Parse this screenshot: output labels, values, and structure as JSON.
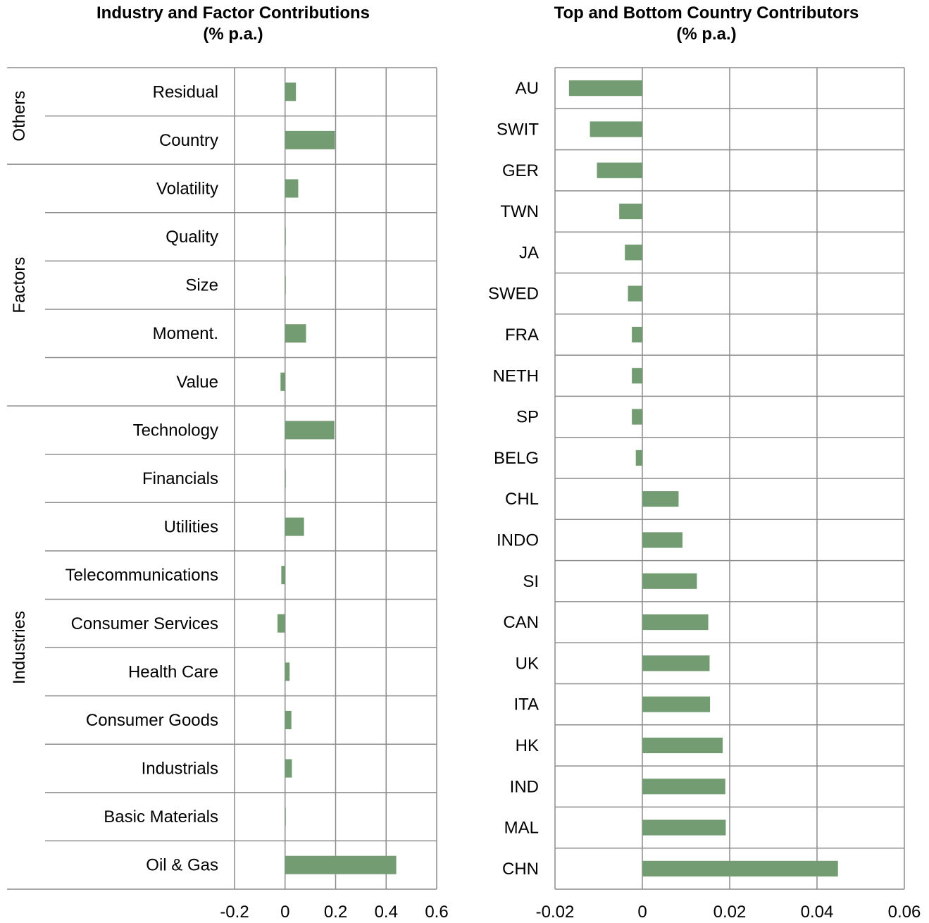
{
  "bar_color": "#749c73",
  "grid_color": "#8c8c8c",
  "chart_data": [
    {
      "type": "bar",
      "orientation": "horizontal",
      "title": "Industry and Factor Contributions",
      "subtitle": "(% p.a.)",
      "xlim": [
        -0.2,
        0.6
      ],
      "xticks": [
        -0.2,
        0,
        0.2,
        0.4,
        0.6
      ],
      "xtick_labels": [
        "-0.2",
        "0",
        "0.2",
        "0.4",
        "0.6"
      ],
      "grid": true,
      "groups": [
        {
          "label": "Others",
          "categories": [
            "Residual",
            "Country"
          ]
        },
        {
          "label": "Factors",
          "categories": [
            "Volatility",
            "Quality",
            "Size",
            "Moment.",
            "Value"
          ]
        },
        {
          "label": "Industries",
          "categories": [
            "Technology",
            "Financials",
            "Utilities",
            "Telecommunications",
            "Consumer Services",
            "Health Care",
            "Consumer Goods",
            "Industrials",
            "Basic Materials",
            "Oil & Gas"
          ]
        }
      ],
      "categories": [
        "Residual",
        "Country",
        "Volatility",
        "Quality",
        "Size",
        "Moment.",
        "Value",
        "Technology",
        "Financials",
        "Utilities",
        "Telecommunications",
        "Consumer Services",
        "Health Care",
        "Consumer Goods",
        "Industrials",
        "Basic Materials",
        "Oil & Gas"
      ],
      "values": [
        0.043,
        0.197,
        0.052,
        0.0,
        0.0,
        0.083,
        -0.018,
        0.195,
        0.002,
        0.075,
        -0.015,
        -0.03,
        0.018,
        0.025,
        0.027,
        0.0,
        0.44
      ]
    },
    {
      "type": "bar",
      "orientation": "horizontal",
      "title": "Top and Bottom Country Contributors",
      "subtitle": "(% p.a.)",
      "xlim": [
        -0.02,
        0.06
      ],
      "xticks": [
        -0.02,
        0,
        0.02,
        0.04,
        0.06
      ],
      "xtick_labels": [
        "-0.02",
        "0",
        "0.02",
        "0.04",
        "0.06"
      ],
      "grid": true,
      "categories": [
        "AU",
        "SWIT",
        "GER",
        "TWN",
        "JA",
        "SWED",
        "FRA",
        "NETH",
        "SP",
        "BELG",
        "CHL",
        "INDO",
        "SI",
        "CAN",
        "UK",
        "ITA",
        "HK",
        "IND",
        "MAL",
        "CHN"
      ],
      "values": [
        -0.0168,
        -0.012,
        -0.0104,
        -0.0053,
        -0.004,
        -0.0033,
        -0.0024,
        -0.0024,
        -0.0024,
        -0.0015,
        0.0083,
        0.0092,
        0.0125,
        0.0151,
        0.0154,
        0.0155,
        0.0184,
        0.019,
        0.0191,
        0.0448
      ]
    }
  ]
}
